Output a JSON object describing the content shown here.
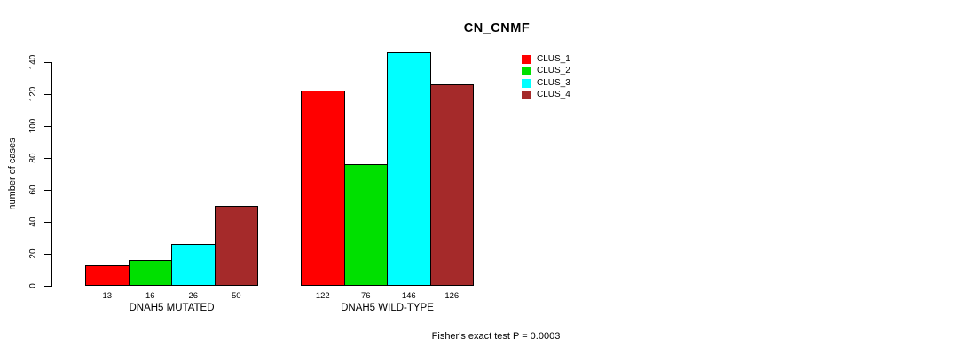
{
  "chart_data": {
    "type": "bar",
    "title": "CN_CNMF",
    "ylabel": "number of cases",
    "ylim": [
      0,
      140
    ],
    "yticks": [
      0,
      20,
      40,
      60,
      80,
      100,
      120,
      140
    ],
    "grid": false,
    "legend_position": "right-of-plot",
    "series": [
      {
        "name": "CLUS_1",
        "color": "#FF0000"
      },
      {
        "name": "CLUS_2",
        "color": "#00E000"
      },
      {
        "name": "CLUS_3",
        "color": "#00FFFF"
      },
      {
        "name": "CLUS_4",
        "color": "#A52A2A"
      }
    ],
    "groups": [
      {
        "label": "DNAH5 MUTATED",
        "values": [
          13,
          16,
          26,
          50
        ]
      },
      {
        "label": "DNAH5 WILD-TYPE",
        "values": [
          122,
          76,
          146,
          126
        ]
      }
    ],
    "bar_value_labels": [
      [
        "13",
        "16",
        "26",
        "50"
      ],
      [
        "122",
        "76",
        "146",
        "126"
      ]
    ],
    "annotation": "Fisher's exact test P = 0.0003",
    "axis_color": "#000000",
    "background_color": "#FFFFFF"
  }
}
